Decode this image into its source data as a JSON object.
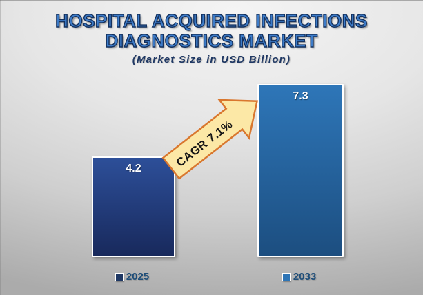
{
  "title": {
    "line1": "HOSPITAL ACQUIRED INFECTIONS",
    "line2": "DIAGNOSTICS MARKET"
  },
  "subtitle": "(Market Size in USD Billion)",
  "chart_data": {
    "type": "bar",
    "categories": [
      "2025",
      "2033"
    ],
    "values": [
      4.2,
      7.3
    ],
    "value_labels": [
      "4.2",
      "7.3"
    ],
    "annotation": "CAGR 7.1%",
    "title": "HOSPITAL ACQUIRED INFECTIONS DIAGNOSTICS MARKET",
    "subtitle": "(Market Size in USD Billion)",
    "xlabel": "",
    "ylabel": "",
    "ylim": [
      0,
      7.3
    ],
    "grid": false,
    "legend_position": "below-each-bar",
    "legend": [
      {
        "label": "2025",
        "color": "#1F3864"
      },
      {
        "label": "2033",
        "color": "#2E75B6"
      }
    ],
    "bar_colors": [
      {
        "top": "#2D4F99",
        "bottom": "#18295C"
      },
      {
        "top": "#2E76B8",
        "bottom": "#1C4E80"
      }
    ]
  },
  "colors": {
    "title_fill": "#3D7CC9",
    "title_outline": "#14315E",
    "subtitle_text": "#1F3864",
    "legend_text": "#1F4E79",
    "arrow_fill": "#FCE8A6",
    "arrow_border": "#D9772E",
    "arrow_text": "#161616",
    "bar_value_text": "#FFFFFF",
    "background_top": "#F4F4F4",
    "background_bottom": "#ABABAB"
  }
}
